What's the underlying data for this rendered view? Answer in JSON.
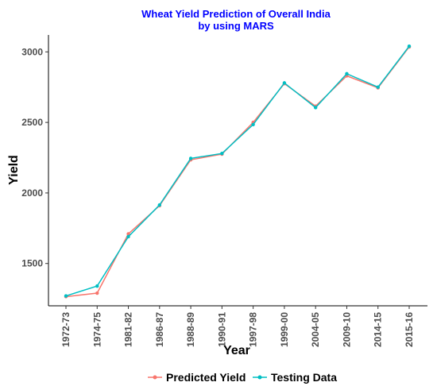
{
  "chart_data": {
    "type": "line",
    "title_line1": "Wheat Yield Prediction of Overall India",
    "title_line2": "by using MARS",
    "xlabel": "Year",
    "ylabel": "Yield",
    "categories": [
      "1972-73",
      "1974-75",
      "1981-82",
      "1986-87",
      "1988-89",
      "1990-91",
      "1997-98",
      "1999-00",
      "2004-05",
      "2009-10",
      "2014-15",
      "2015-16"
    ],
    "ylim": [
      1200,
      3120
    ],
    "yticks": [
      1500,
      2000,
      2500,
      3000
    ],
    "grid": false,
    "legend_position": "bottom",
    "series": [
      {
        "name": "Predicted Yield",
        "color": "#F8766D",
        "values": [
          1265,
          1290,
          1710,
          1910,
          2235,
          2275,
          2500,
          2775,
          2615,
          2830,
          2745,
          3035
        ]
      },
      {
        "name": "Testing Data",
        "color": "#00BFC4",
        "values": [
          1270,
          1340,
          1690,
          1915,
          2245,
          2280,
          2485,
          2780,
          2605,
          2845,
          2750,
          3040
        ]
      }
    ],
    "title_color": "#0000FF"
  }
}
